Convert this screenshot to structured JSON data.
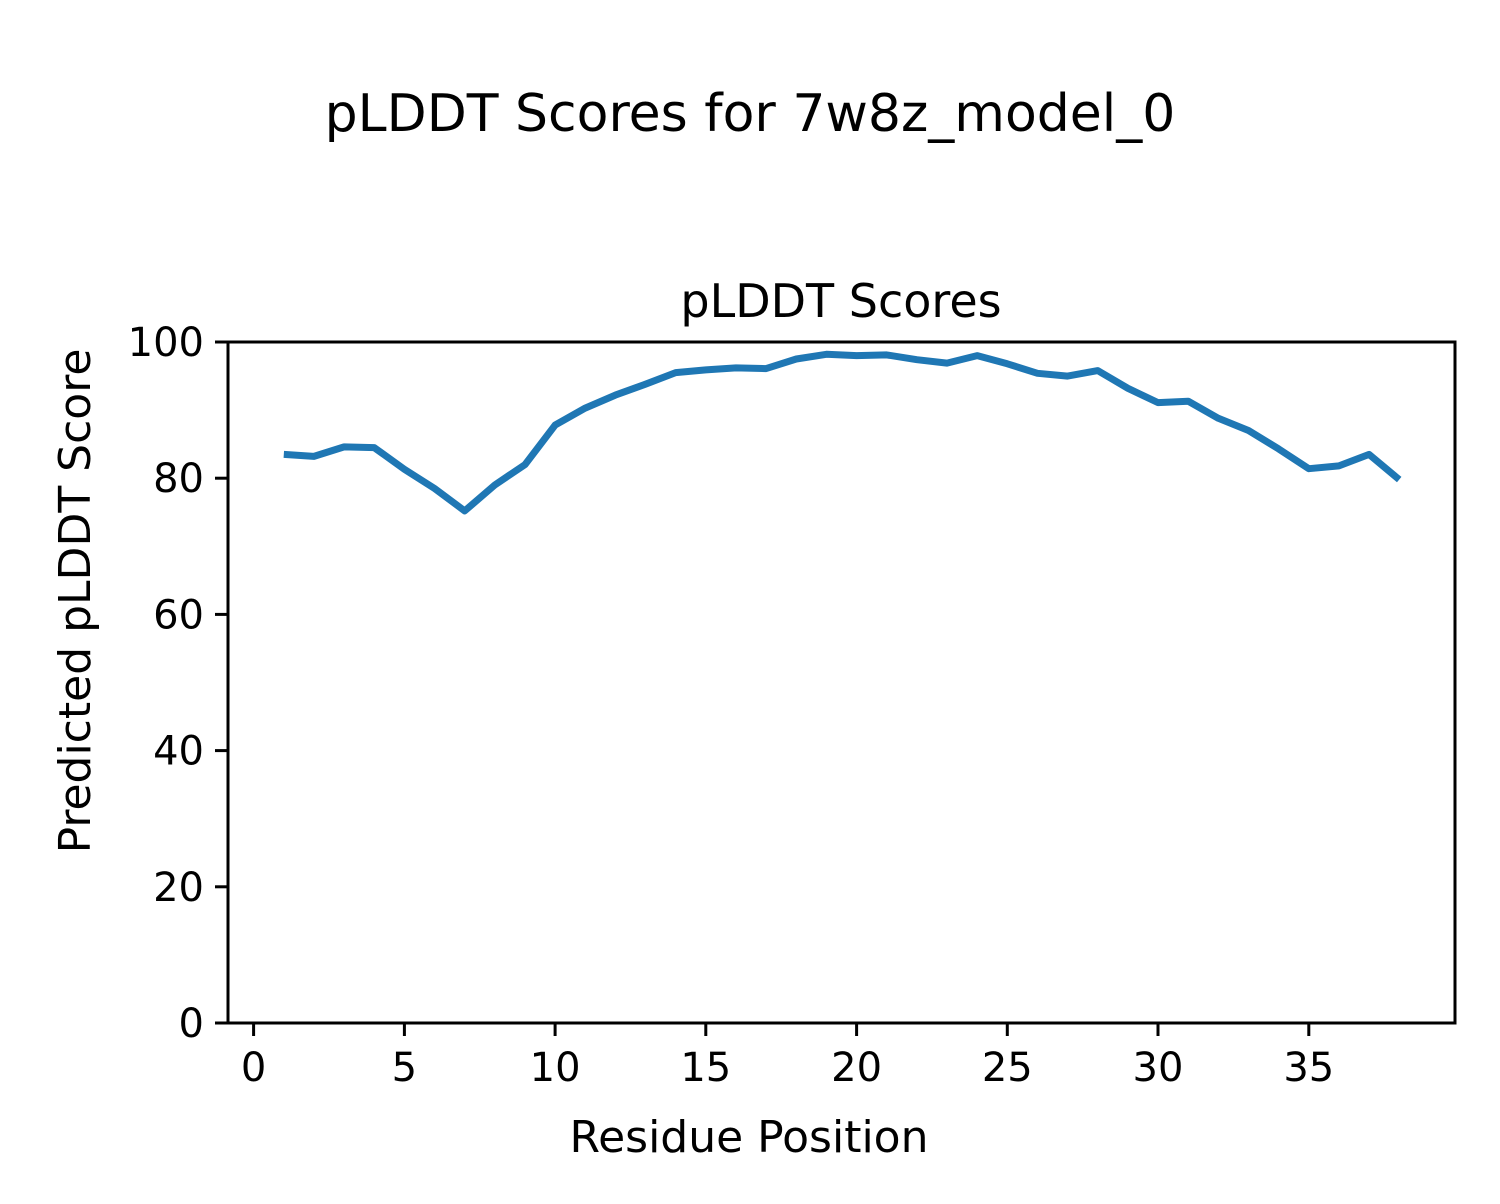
{
  "figure": {
    "title": "pLDDT Scores for 7w8z_model_0"
  },
  "chart_data": {
    "type": "line",
    "title": "pLDDT Scores",
    "xlabel": "Residue Position",
    "ylabel": "Predicted pLDDT Score",
    "x": [
      1,
      2,
      3,
      4,
      5,
      6,
      7,
      8,
      9,
      10,
      11,
      12,
      13,
      14,
      15,
      16,
      17,
      18,
      19,
      20,
      21,
      22,
      23,
      24,
      25,
      26,
      27,
      28,
      29,
      30,
      31,
      32,
      33,
      34,
      35,
      36,
      37,
      38
    ],
    "values": [
      83.5,
      83.2,
      84.6,
      84.5,
      81.3,
      78.5,
      75.2,
      79.0,
      82.0,
      87.8,
      90.3,
      92.2,
      93.8,
      95.5,
      95.9,
      96.2,
      96.1,
      97.5,
      98.2,
      98.0,
      98.1,
      97.4,
      96.9,
      98.0,
      96.8,
      95.4,
      95.0,
      95.8,
      93.2,
      91.1,
      91.3,
      88.8,
      87.0,
      84.3,
      81.4,
      81.8,
      83.5,
      79.8
    ],
    "xticks": [
      0,
      5,
      10,
      15,
      20,
      25,
      30,
      35
    ],
    "yticks": [
      0,
      20,
      40,
      60,
      80,
      100
    ],
    "xlim": [
      -0.85,
      39.85
    ],
    "ylim": [
      0,
      100
    ],
    "line_color": "#1f77b4",
    "axis_color": "#000000",
    "grid": false
  }
}
